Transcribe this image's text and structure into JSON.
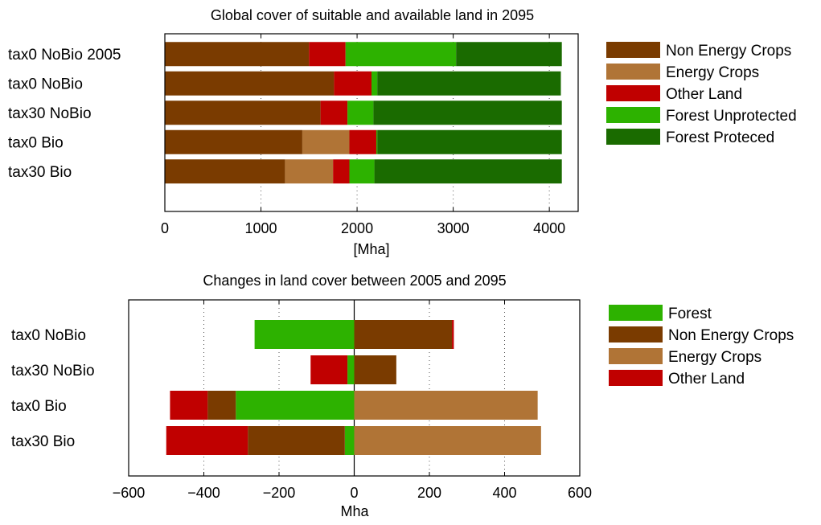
{
  "chart_data": [
    {
      "type": "bar",
      "orientation": "horizontal",
      "stacked": true,
      "title": "Global cover of suitable and available land in 2095",
      "xlabel": "[Mha]",
      "ylabel": "",
      "xlim": [
        0,
        4300
      ],
      "xticks": [
        "0",
        "1000",
        "2000",
        "3000",
        "4000"
      ],
      "grid": "vertical dotted",
      "legend_position": "right",
      "categories": [
        "tax0 NoBio 2005",
        "tax0 NoBio",
        "tax30 NoBio",
        "tax0 Bio",
        "tax30 Bio"
      ],
      "series": [
        {
          "name": "Non Energy Crops",
          "color": "#7a3b00",
          "values": [
            1500,
            1760,
            1620,
            1430,
            1250
          ]
        },
        {
          "name": "Energy Crops",
          "color": "#b07436",
          "values": [
            0,
            0,
            0,
            490,
            500
          ]
        },
        {
          "name": "Other Land",
          "color": "#c00000",
          "values": [
            380,
            390,
            280,
            280,
            170
          ]
        },
        {
          "name": "Forest Unprotected",
          "color": "#2db200",
          "values": [
            1150,
            60,
            270,
            10,
            260
          ]
        },
        {
          "name": "Forest Proteced",
          "color": "#1a6b00",
          "values": [
            1100,
            1910,
            1960,
            1920,
            1950
          ]
        }
      ]
    },
    {
      "type": "bar",
      "orientation": "horizontal",
      "stacked": true,
      "diverging": true,
      "title": "Changes in land cover between 2005 and 2095",
      "xlabel": "Mha",
      "ylabel": "",
      "xlim": [
        -600,
        600
      ],
      "xticks": [
        "−600",
        "−400",
        "−200",
        "0",
        "200",
        "400",
        "600"
      ],
      "grid": "vertical dotted",
      "legend_position": "right",
      "categories": [
        "tax0 NoBio",
        "tax30 NoBio",
        "tax0 Bio",
        "tax30 Bio"
      ],
      "series": [
        {
          "name": "Forest",
          "color": "#2db200",
          "values": [
            -265,
            -18,
            -315,
            -25
          ]
        },
        {
          "name": "Non Energy Crops",
          "color": "#7a3b00",
          "values": [
            260,
            112,
            -75,
            -258
          ]
        },
        {
          "name": "Energy Crops",
          "color": "#b07436",
          "values": [
            0,
            0,
            488,
            497
          ]
        },
        {
          "name": "Other Land",
          "color": "#c00000",
          "values": [
            5,
            -98,
            -100,
            -217
          ]
        }
      ]
    }
  ]
}
